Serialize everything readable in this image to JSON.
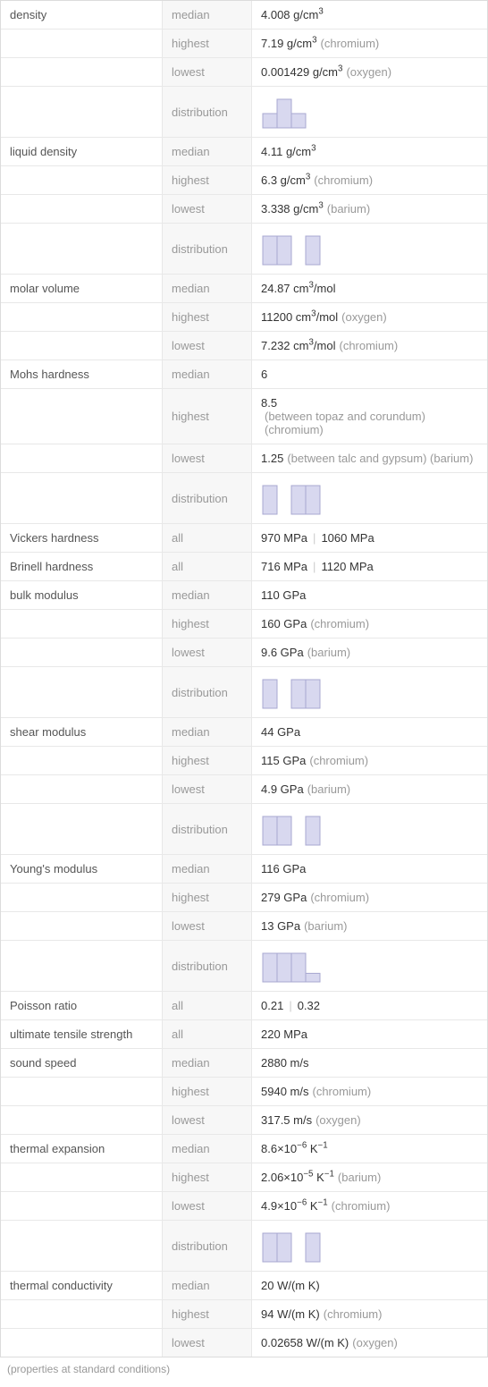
{
  "footer": "(properties at standard conditions)",
  "colors": {
    "bar_fill": "#d8d8ef",
    "bar_stroke": "#a8a8d0",
    "border": "#e8e8e8"
  },
  "properties": [
    {
      "name": "density",
      "rows": [
        {
          "stat": "median",
          "value_html": "4.008 g/cm<sup>3</sup>"
        },
        {
          "stat": "highest",
          "value_html": "7.19 g/cm<sup>3</sup>",
          "note": "(chromium)"
        },
        {
          "stat": "lowest",
          "value_html": "0.001429 g/cm<sup>3</sup>",
          "note": "(oxygen)"
        },
        {
          "stat": "distribution",
          "distribution": [
            0.5,
            1,
            0.5
          ]
        }
      ]
    },
    {
      "name": "liquid density",
      "rows": [
        {
          "stat": "median",
          "value_html": "4.11 g/cm<sup>3</sup>"
        },
        {
          "stat": "highest",
          "value_html": "6.3 g/cm<sup>3</sup>",
          "note": "(chromium)"
        },
        {
          "stat": "lowest",
          "value_html": "3.338 g/cm<sup>3</sup>",
          "note": "(barium)"
        },
        {
          "stat": "distribution",
          "distribution": [
            1,
            1,
            0,
            1
          ]
        }
      ]
    },
    {
      "name": "molar volume",
      "rows": [
        {
          "stat": "median",
          "value_html": "24.87 cm<sup>3</sup>/mol"
        },
        {
          "stat": "highest",
          "value_html": "11200 cm<sup>3</sup>/mol",
          "note": "(oxygen)"
        },
        {
          "stat": "lowest",
          "value_html": "7.232 cm<sup>3</sup>/mol",
          "note": "(chromium)"
        }
      ]
    },
    {
      "name": "Mohs hardness",
      "rows": [
        {
          "stat": "median",
          "value_html": "6"
        },
        {
          "stat": "highest",
          "value_html": "8.5",
          "note": "(between topaz and corundum) (chromium)"
        },
        {
          "stat": "lowest",
          "value_html": "1.25",
          "note": "(between talc and gypsum) (barium)"
        },
        {
          "stat": "distribution",
          "distribution": [
            1,
            0,
            1,
            1
          ]
        }
      ]
    },
    {
      "name": "Vickers hardness",
      "rows": [
        {
          "stat": "all",
          "value_list": [
            "970 MPa",
            "1060 MPa"
          ]
        }
      ]
    },
    {
      "name": "Brinell hardness",
      "rows": [
        {
          "stat": "all",
          "value_list": [
            "716 MPa",
            "1120 MPa"
          ]
        }
      ]
    },
    {
      "name": "bulk modulus",
      "rows": [
        {
          "stat": "median",
          "value_html": "110 GPa"
        },
        {
          "stat": "highest",
          "value_html": "160 GPa",
          "note": "(chromium)"
        },
        {
          "stat": "lowest",
          "value_html": "9.6 GPa",
          "note": "(barium)"
        },
        {
          "stat": "distribution",
          "distribution": [
            1,
            0,
            1,
            1
          ]
        }
      ]
    },
    {
      "name": "shear modulus",
      "rows": [
        {
          "stat": "median",
          "value_html": "44 GPa"
        },
        {
          "stat": "highest",
          "value_html": "115 GPa",
          "note": "(chromium)"
        },
        {
          "stat": "lowest",
          "value_html": "4.9 GPa",
          "note": "(barium)"
        },
        {
          "stat": "distribution",
          "distribution": [
            1,
            1,
            0,
            1
          ]
        }
      ]
    },
    {
      "name": "Young's modulus",
      "rows": [
        {
          "stat": "median",
          "value_html": "116 GPa"
        },
        {
          "stat": "highest",
          "value_html": "279 GPa",
          "note": "(chromium)"
        },
        {
          "stat": "lowest",
          "value_html": "13 GPa",
          "note": "(barium)"
        },
        {
          "stat": "distribution",
          "distribution": [
            1,
            1,
            1,
            0.3
          ]
        }
      ]
    },
    {
      "name": "Poisson ratio",
      "rows": [
        {
          "stat": "all",
          "value_list": [
            "0.21",
            "0.32"
          ]
        }
      ]
    },
    {
      "name": "ultimate tensile strength",
      "rows": [
        {
          "stat": "all",
          "value_html": "220 MPa"
        }
      ]
    },
    {
      "name": "sound speed",
      "rows": [
        {
          "stat": "median",
          "value_html": "2880 m/s"
        },
        {
          "stat": "highest",
          "value_html": "5940 m/s",
          "note": "(chromium)"
        },
        {
          "stat": "lowest",
          "value_html": "317.5 m/s",
          "note": "(oxygen)"
        }
      ]
    },
    {
      "name": "thermal expansion",
      "rows": [
        {
          "stat": "median",
          "value_html": "8.6×10<sup>−6</sup> K<sup>−1</sup>"
        },
        {
          "stat": "highest",
          "value_html": "2.06×10<sup>−5</sup> K<sup>−1</sup>",
          "note": "(barium)"
        },
        {
          "stat": "lowest",
          "value_html": "4.9×10<sup>−6</sup> K<sup>−1</sup>",
          "note": "(chromium)"
        },
        {
          "stat": "distribution",
          "distribution": [
            1,
            1,
            0,
            1
          ]
        }
      ]
    },
    {
      "name": "thermal conductivity",
      "rows": [
        {
          "stat": "median",
          "value_html": "20 W/(m K)"
        },
        {
          "stat": "highest",
          "value_html": "94 W/(m K)",
          "note": "(chromium)"
        },
        {
          "stat": "lowest",
          "value_html": "0.02658 W/(m K)",
          "note": "(oxygen)"
        }
      ]
    }
  ]
}
